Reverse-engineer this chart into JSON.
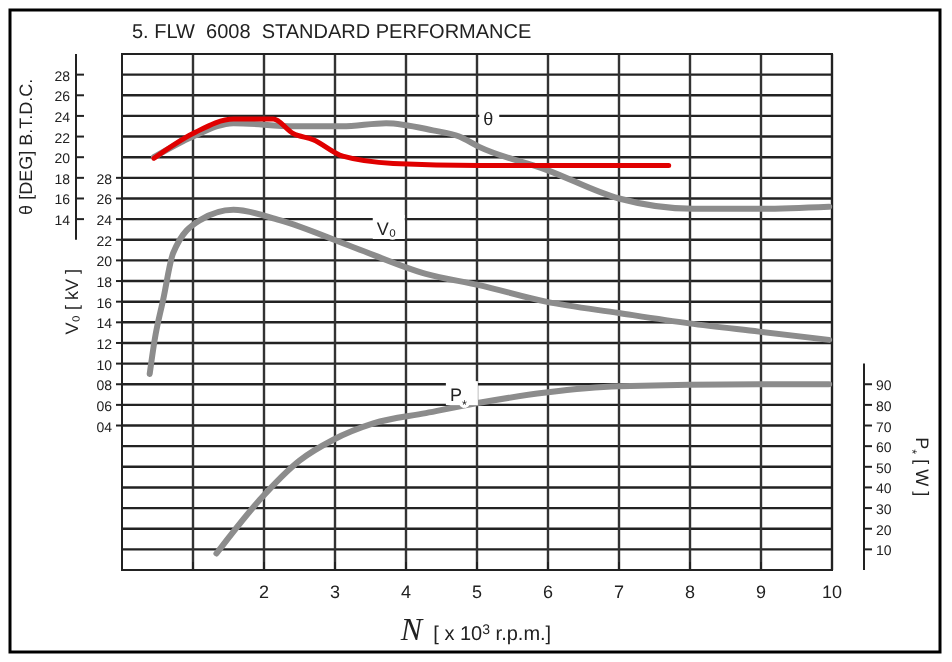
{
  "chart_data": {
    "type": "line",
    "title": "5. FLW  6008  STANDARD PERFORMANCE",
    "xlabel": "N  [ x 10$^{3}$ r.p.m.]",
    "ylabel": "θ [DEG] B.T.D.C.",
    "y3label": "V₀ [ kV ]",
    "y2label": "P$_{*}$ [ W ]",
    "xlim": [
      0,
      10
    ],
    "xticks": [
      {
        "value": 1,
        "label": null
      },
      2,
      3,
      4,
      5,
      6,
      7,
      8,
      9,
      10
    ],
    "ylim": [
      -20,
      30
    ],
    "yticks": [
      {
        "value": -18,
        "label": null
      },
      {
        "value": -16,
        "label": null
      },
      {
        "value": -14,
        "label": null
      },
      {
        "value": -12,
        "label": null
      },
      {
        "value": -10,
        "label": null
      },
      {
        "value": -8,
        "label": null
      },
      {
        "value": -6,
        "label": null
      },
      {
        "value": -4,
        "label": null
      },
      {
        "value": -2,
        "label": null
      },
      {
        "value": 0,
        "label": null
      },
      {
        "value": 2,
        "label": null
      },
      {
        "value": 4,
        "label": null
      },
      {
        "value": 6,
        "label": null
      },
      {
        "value": 8,
        "label": null
      },
      {
        "value": 10,
        "label": null
      },
      {
        "value": 12,
        "label": null
      },
      14,
      16,
      18,
      20,
      22,
      24,
      26,
      28
    ],
    "y3lim": [
      -10,
      40
    ],
    "y3ticks": [
      {
        "value": 4,
        "label": "04"
      },
      {
        "value": 6,
        "label": "06"
      },
      {
        "value": 8,
        "label": "08"
      },
      10,
      12,
      14,
      16,
      18,
      20,
      22,
      24,
      26,
      28
    ],
    "y2lim": [
      0,
      250
    ],
    "y2ticks": [
      10,
      20,
      30,
      40,
      50,
      60,
      70,
      80,
      90
    ],
    "grid": true,
    "series": [
      {
        "name": "θ",
        "color": "#8c8c8c",
        "x": [
          0.45,
          1.0,
          1.57,
          2.43,
          3.1,
          3.72,
          4.38,
          4.75,
          5.03,
          5.97,
          7.0,
          8.04,
          8.98,
          9.96
        ],
        "values": [
          20,
          22,
          23.3,
          23,
          23,
          23.3,
          22.6,
          22,
          21,
          18.8,
          16,
          15,
          15,
          15.2
        ]
      },
      {
        "color": "#e00000",
        "x": [
          0.45,
          1.0,
          1.57,
          2.13,
          2.41,
          2.69,
          3.11,
          3.82,
          5.03,
          6.64,
          7.7
        ],
        "values": [
          19.9,
          22.3,
          23.7,
          23.7,
          22.3,
          21.7,
          20.1,
          19.4,
          19.2,
          19.2,
          19.2
        ]
      },
      {
        "name": "V₀",
        "axis": "y3",
        "color": "#8c8c8c",
        "x": [
          0.39,
          0.46,
          0.58,
          0.72,
          1.1,
          1.57,
          2.22,
          3.25,
          4.28,
          5.03,
          5.97,
          7.0,
          7.99,
          8.97,
          9.96
        ],
        "values": [
          9,
          12.3,
          16.2,
          20.7,
          23.9,
          24.9,
          23.9,
          21.3,
          18.7,
          17.6,
          16,
          14.9,
          13.9,
          13.1,
          12.3
        ]
      },
      {
        "name": "P$_{*}$",
        "axis": "y2",
        "color": "#8c8c8c",
        "x": [
          1.33,
          1.94,
          2.5,
          2.97,
          3.54,
          4.28,
          5.03,
          5.97,
          7.0,
          8.97,
          9.96
        ],
        "values": [
          8,
          34,
          53,
          63,
          71,
          76,
          81,
          86,
          89,
          90,
          90
        ]
      }
    ]
  }
}
